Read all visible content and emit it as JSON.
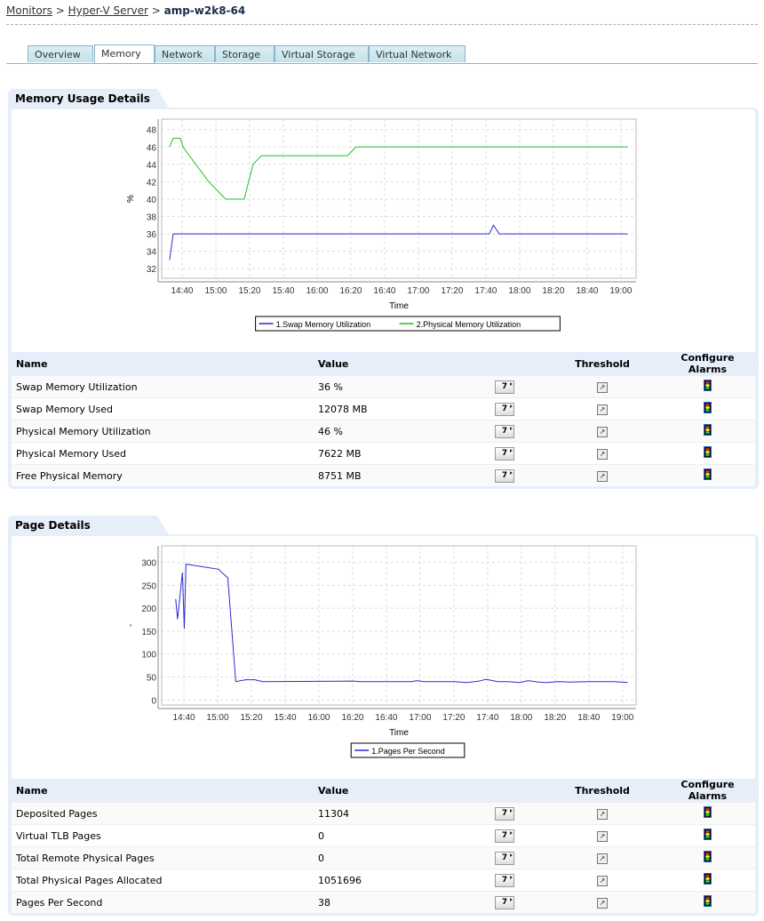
{
  "breadcrumb": {
    "items": [
      "Monitors",
      "Hyper-V Server"
    ],
    "sep": ">",
    "current": "amp-w2k8-64"
  },
  "tabs": [
    "Overview",
    "Memory",
    "Network",
    "Storage",
    "Virtual Storage",
    "Virtual Network"
  ],
  "active_tab": "Memory",
  "colors": {
    "accent": "#e6eefa",
    "series_blue": "#2b2bd0",
    "series_green": "#22c022"
  },
  "sections": [
    {
      "title": "Memory Usage Details",
      "table": {
        "headers": [
          "Name",
          "Value",
          "Threshold",
          "Configure Alarms"
        ],
        "rows": [
          [
            "Swap Memory Utilization",
            "36  %"
          ],
          [
            "Swap Memory Used",
            "12078  MB"
          ],
          [
            "Physical Memory Utilization",
            "46  %"
          ],
          [
            "Physical Memory Used",
            "7622  MB"
          ],
          [
            "Free Physical Memory",
            "8751  MB"
          ]
        ]
      },
      "button_label": "7"
    },
    {
      "title": "Page Details",
      "table": {
        "headers": [
          "Name",
          "Value",
          "Threshold",
          "Configure Alarms"
        ],
        "rows": [
          [
            "Deposited Pages",
            "11304"
          ],
          [
            "Virtual TLB Pages",
            "0"
          ],
          [
            "Total Remote Physical Pages",
            "0"
          ],
          [
            "Total Physical Pages Allocated",
            "1051696"
          ],
          [
            "Pages Per Second",
            "38"
          ]
        ]
      },
      "button_label": "7"
    }
  ],
  "chart_data": [
    {
      "type": "line",
      "xlabel": "Time",
      "ylabel": "%",
      "ylim": [
        30.9,
        49.2
      ],
      "yticks": [
        32,
        34,
        36,
        38,
        40,
        42,
        44,
        46,
        48
      ],
      "xticks": [
        "14:40",
        "15:00",
        "15:20",
        "15:40",
        "16:00",
        "16:20",
        "16:40",
        "17:00",
        "17:20",
        "17:40",
        "18:00",
        "18:20",
        "18:40",
        "19:00"
      ],
      "x_unit": "minutes after 14:00",
      "xlim": [
        27.9,
        309
      ],
      "grid": true,
      "legend": "bottom",
      "series": [
        {
          "name": "1.Swap Memory Utilization",
          "color": "#2b2bd0",
          "points": [
            [
              32.6,
              33
            ],
            [
              34.7,
              36
            ],
            [
              222,
              36
            ],
            [
              224.5,
              37
            ],
            [
              228,
              36
            ],
            [
              304,
              36
            ]
          ]
        },
        {
          "name": "2.Physical Memory Utilization",
          "color": "#22c022",
          "points": [
            [
              32.6,
              46
            ],
            [
              34.7,
              47
            ],
            [
              39,
              47
            ],
            [
              40.5,
              46
            ],
            [
              55.8,
              42
            ],
            [
              65.8,
              40
            ],
            [
              76.8,
              40
            ],
            [
              82,
              44
            ],
            [
              87,
              45
            ],
            [
              138,
              45
            ],
            [
              143,
              46
            ],
            [
              304,
              46
            ]
          ]
        }
      ]
    },
    {
      "type": "line",
      "xlabel": "Time",
      "ylabel": "-",
      "ylim": [
        -11,
        336
      ],
      "yticks": [
        0,
        50,
        100,
        150,
        200,
        250,
        300
      ],
      "xticks": [
        "14:40",
        "15:00",
        "15:20",
        "15:40",
        "16:00",
        "16:20",
        "16:40",
        "17:00",
        "17:20",
        "17:40",
        "18:00",
        "18:20",
        "18:40",
        "19:00"
      ],
      "x_unit": "minutes after 14:00",
      "xlim": [
        26.8,
        308
      ],
      "grid": true,
      "legend": "bottom",
      "series": [
        {
          "name": "1.Pages Per Second",
          "color": "#2b2bd0",
          "points": [
            [
              35.1,
              220
            ],
            [
              36.2,
              176
            ],
            [
              39.1,
              278
            ],
            [
              40.2,
              155
            ],
            [
              41.2,
              296
            ],
            [
              60.5,
              285
            ],
            [
              66,
              266
            ],
            [
              70.7,
              40
            ],
            [
              76.7,
              44
            ],
            [
              82,
              44
            ],
            [
              86.8,
              40
            ],
            [
              140,
              41
            ],
            [
              145,
              40
            ],
            [
              175,
              40
            ],
            [
              178,
              42
            ],
            [
              182,
              40
            ],
            [
              200,
              40
            ],
            [
              208,
              38
            ],
            [
              215,
              41
            ],
            [
              219,
              45
            ],
            [
              226,
              40
            ],
            [
              232,
              40
            ],
            [
              239,
              38
            ],
            [
              244,
              42
            ],
            [
              250,
              39
            ],
            [
              255,
              38
            ],
            [
              262,
              40
            ],
            [
              268,
              39
            ],
            [
              280,
              40
            ],
            [
              295,
              40
            ],
            [
              303,
              38
            ]
          ]
        }
      ]
    }
  ]
}
